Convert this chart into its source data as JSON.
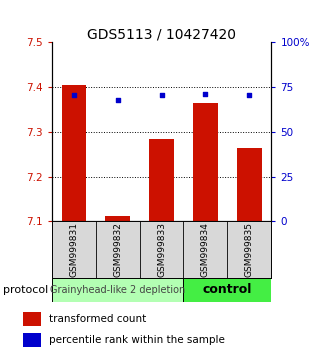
{
  "title": "GDS5113 / 10427420",
  "samples": [
    "GSM999831",
    "GSM999832",
    "GSM999833",
    "GSM999834",
    "GSM999835"
  ],
  "bar_base": 7.1,
  "bar_tops": [
    7.405,
    7.112,
    7.285,
    7.365,
    7.265
  ],
  "percentile_ranks": [
    70.5,
    68.0,
    70.5,
    71.0,
    70.5
  ],
  "ylim_left": [
    7.1,
    7.5
  ],
  "ylim_right": [
    0,
    100
  ],
  "yticks_left": [
    7.1,
    7.2,
    7.3,
    7.4,
    7.5
  ],
  "yticks_right": [
    0,
    25,
    50,
    75,
    100
  ],
  "bar_color": "#cc1100",
  "square_color": "#0000cc",
  "group1_label": "Grainyhead-like 2 depletion",
  "group2_label": "control",
  "group1_color": "#b3ffb3",
  "group2_color": "#44ee44",
  "group1_samples": [
    0,
    1,
    2
  ],
  "group2_samples": [
    3,
    4
  ],
  "protocol_label": "protocol",
  "legend_bar_label": "transformed count",
  "legend_sq_label": "percentile rank within the sample",
  "background_color": "#ffffff",
  "title_fontsize": 10,
  "tick_fontsize": 7.5,
  "sample_fontsize": 6.5,
  "group_fontsize1": 7,
  "group_fontsize2": 9,
  "legend_fontsize": 7.5
}
